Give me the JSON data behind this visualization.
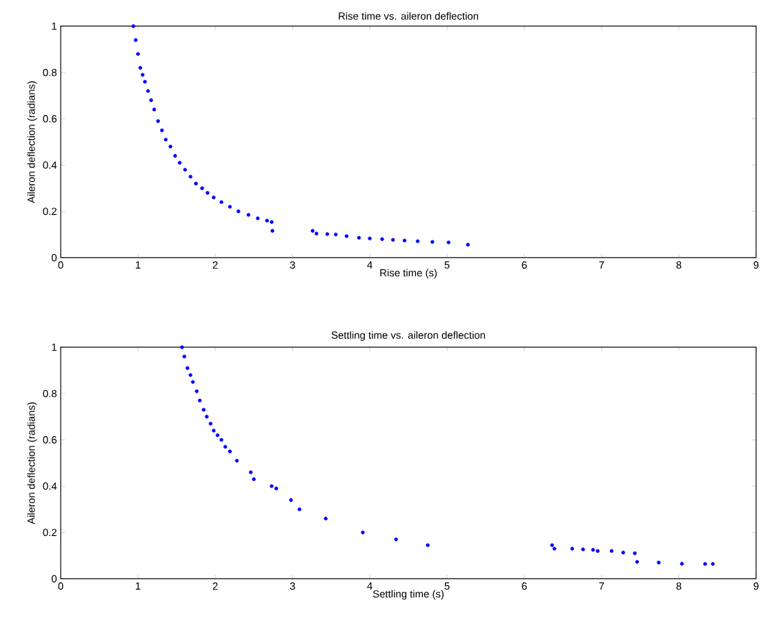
{
  "chart_data": [
    {
      "type": "scatter",
      "title": "Rise time vs. aileron deflection",
      "xlabel": "Rise time (s)",
      "ylabel": "Aileron deflection (radians)",
      "marker": "circle",
      "color": "#0000ff",
      "x": [
        0.94,
        0.97,
        1.0,
        1.03,
        1.06,
        1.09,
        1.13,
        1.17,
        1.21,
        1.26,
        1.31,
        1.36,
        1.42,
        1.48,
        1.54,
        1.61,
        1.68,
        1.75,
        1.83,
        1.9,
        1.98,
        2.08,
        2.19,
        2.3,
        2.43,
        2.55,
        2.67,
        2.73,
        2.74,
        3.26,
        3.31,
        3.45,
        3.56,
        3.7,
        3.86,
        4.0,
        4.16,
        4.3,
        4.45,
        4.62,
        4.81,
        5.02,
        5.27
      ],
      "values": [
        1.0,
        0.94,
        0.88,
        0.82,
        0.79,
        0.76,
        0.72,
        0.68,
        0.64,
        0.59,
        0.55,
        0.51,
        0.48,
        0.44,
        0.41,
        0.38,
        0.35,
        0.32,
        0.3,
        0.28,
        0.26,
        0.24,
        0.22,
        0.2,
        0.185,
        0.17,
        0.16,
        0.154,
        0.116,
        0.116,
        0.104,
        0.102,
        0.1,
        0.093,
        0.086,
        0.083,
        0.08,
        0.077,
        0.074,
        0.071,
        0.068,
        0.066,
        0.056
      ],
      "xlim": [
        0,
        9
      ],
      "ylim": [
        0,
        1
      ],
      "xticks": [
        0,
        1,
        2,
        3,
        4,
        5,
        6,
        7,
        8,
        9
      ],
      "yticks": [
        0,
        0.2,
        0.4,
        0.6,
        0.8,
        1
      ]
    },
    {
      "type": "scatter",
      "title": "Settling time vs. aileron deflection",
      "xlabel": "Settling time (s)",
      "ylabel": "Aileron deflection (radians)",
      "marker": "circle",
      "color": "#0000ff",
      "x": [
        1.57,
        1.6,
        1.64,
        1.68,
        1.71,
        1.76,
        1.8,
        1.85,
        1.89,
        1.94,
        1.98,
        2.03,
        2.08,
        2.13,
        2.19,
        2.28,
        2.46,
        2.5,
        2.73,
        2.79,
        2.98,
        3.09,
        3.43,
        3.91,
        4.34,
        4.75,
        6.36,
        6.39,
        6.62,
        6.76,
        6.89,
        6.95,
        7.13,
        7.28,
        7.43,
        7.46,
        7.74,
        8.04,
        8.34,
        8.44
      ],
      "values": [
        1.0,
        0.96,
        0.91,
        0.88,
        0.85,
        0.81,
        0.77,
        0.73,
        0.7,
        0.67,
        0.64,
        0.62,
        0.6,
        0.57,
        0.55,
        0.51,
        0.46,
        0.43,
        0.4,
        0.39,
        0.34,
        0.3,
        0.26,
        0.2,
        0.17,
        0.145,
        0.145,
        0.13,
        0.13,
        0.127,
        0.125,
        0.12,
        0.12,
        0.113,
        0.11,
        0.073,
        0.07,
        0.065,
        0.064,
        0.064
      ],
      "xlim": [
        0,
        9
      ],
      "ylim": [
        0,
        1
      ],
      "xticks": [
        0,
        1,
        2,
        3,
        4,
        5,
        6,
        7,
        8,
        9
      ],
      "yticks": [
        0,
        0.2,
        0.4,
        0.6,
        0.8,
        1
      ]
    }
  ]
}
